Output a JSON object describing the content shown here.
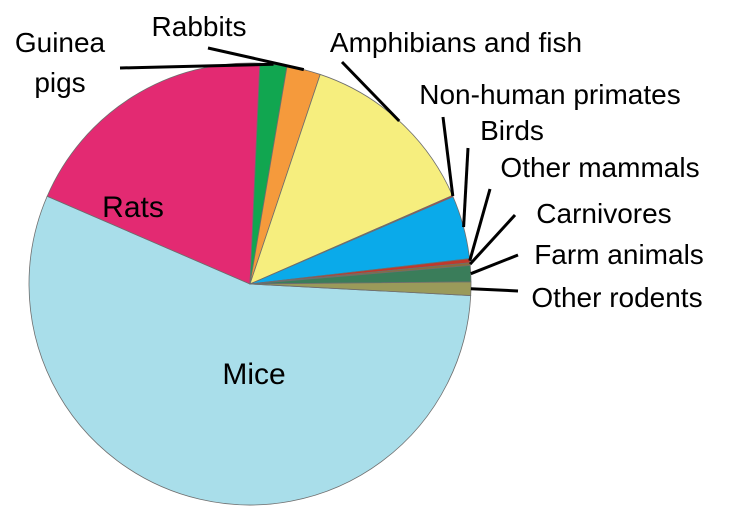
{
  "chart_data": {
    "type": "pie",
    "title": "",
    "slices": [
      {
        "label": "Mice",
        "value": 56.5,
        "color": "#a9deea"
      },
      {
        "label": "Rats",
        "value": 19.5,
        "color": "#e32a72"
      },
      {
        "label": "Guinea pigs",
        "value": 2.0,
        "color": "#11a650"
      },
      {
        "label": "Rabbits",
        "value": 2.5,
        "color": "#f59a3c"
      },
      {
        "label": "Amphibians and fish",
        "value": 13.5,
        "color": "#f6ee7e"
      },
      {
        "label": "Non-human primates",
        "value": 0.1,
        "color": "#e0302a"
      },
      {
        "label": "Birds",
        "value": 4.7,
        "color": "#0aaaea"
      },
      {
        "label": "Other mammals",
        "value": 0.3,
        "color": "#c0392b"
      },
      {
        "label": "Carnivores",
        "value": 0.2,
        "color": "#8a6d3b"
      },
      {
        "label": "Farm animals",
        "value": 1.2,
        "color": "#3a7d5a"
      },
      {
        "label": "Other rodents",
        "value": 1.0,
        "color": "#9a9a5a"
      }
    ]
  }
}
